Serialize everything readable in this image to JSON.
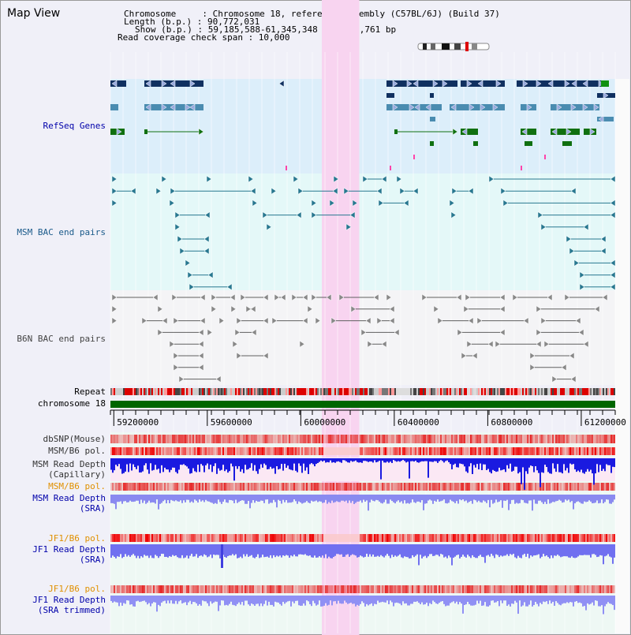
{
  "view_title": "Map View",
  "info": {
    "chromosome_label": "Chromosome     : Chromosome 18, reference assembly (C57BL/6J) (Build 37)",
    "length_label": "Length (b.p.) : 90,772,031",
    "show_label": "Show (b.p.) : 59,185,588-61,345,348 : 2,159,761 bp",
    "read_coverage_label": "Read coverage check span : 10,000"
  },
  "tracks": {
    "refseq": "RefSeq Genes",
    "msm_bac": "MSM BAC end pairs",
    "b6n_bac": "B6N BAC end pairs",
    "repeat": "Repeat",
    "chromosome_bar": "chromosome 18",
    "dbsnp": "dbSNP(Mouse)",
    "msm_b6_pol_1": "MSM/B6 pol.",
    "msm_depth_cap_1": "MSM Read Depth",
    "msm_depth_cap_2": "(Capillary)",
    "msm_b6_pol_2": "MSM/B6 pol.",
    "msm_depth_sra_1": "MSM Read Depth",
    "msm_depth_sra_2": "(SRA)",
    "jf1_b6_pol_1": "JF1/B6 pol.",
    "jf1_depth_sra_1": "JF1 Read Depth",
    "jf1_depth_sra_2": "(SRA)",
    "jf1_b6_pol_2": "JF1/B6 pol.",
    "jf1_depth_trim_1": "JF1 Read Depth",
    "jf1_depth_trim_2": "(SRA trimmed)"
  },
  "axis": {
    "ticks": [
      {
        "pos": 59200000,
        "label": "59200000"
      },
      {
        "pos": 59600000,
        "label": "59600000"
      },
      {
        "pos": 60000000,
        "label": "60000000"
      },
      {
        "pos": 60400000,
        "label": "60400000"
      },
      {
        "pos": 60800000,
        "label": "60800000"
      },
      {
        "pos": 61200000,
        "label": "61200000"
      }
    ],
    "start": 59185588,
    "end": 61345348
  },
  "highlight_region": {
    "start": 60090000,
    "end": 60250000
  },
  "colors": {
    "refseq_bg": "#dceefa",
    "msm_bg": "#e4f8f8",
    "b6n_bg": "#f4f4f6",
    "lower_bg": "#eef8f4",
    "highlight": "#f8d4f0",
    "refseq_dark": "#103060",
    "refseq_mid": "#4a8cb0",
    "refseq_green": "#107010",
    "msm_feature": "#287890",
    "b6n_feature": "#606060",
    "chromosome_green": "#006600",
    "label_blue": "#0000aa",
    "label_orange": "#e09000",
    "label_black": "#333333"
  }
}
